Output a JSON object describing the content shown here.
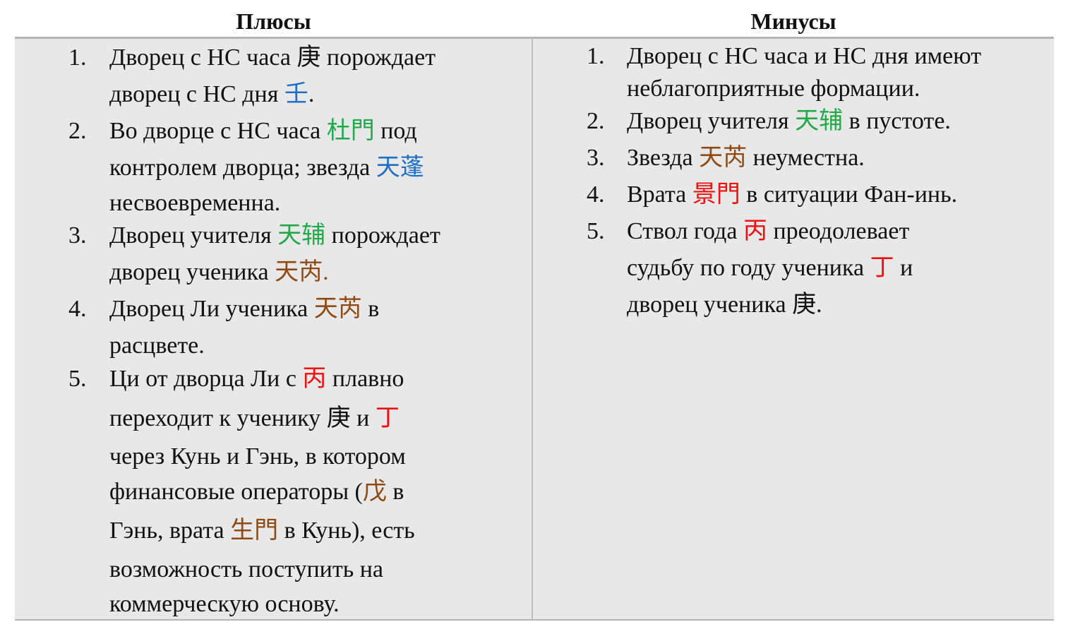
{
  "colors": {
    "blue": "#1f6fc4",
    "green": "#22a94a",
    "brown": "#8f4a14",
    "red": "#f01010",
    "black": "#111111"
  },
  "columns": [
    {
      "title": "Плюсы",
      "items": [
        {
          "number": "1.",
          "lines": [
            [
              {
                "t": "Дворец с НС часа 庚 порождает",
                "c": "black"
              }
            ],
            [
              {
                "t": "дворец с НС дня ",
                "c": "black"
              },
              {
                "t": "壬",
                "c": "blue"
              },
              {
                "t": ".",
                "c": "black"
              }
            ]
          ]
        },
        {
          "number": "2.",
          "lines": [
            [
              {
                "t": "Во дворце с НС часа ",
                "c": "black"
              },
              {
                "t": "杜門",
                "c": "green"
              },
              {
                "t": " под",
                "c": "black"
              }
            ],
            [
              {
                "t": "контролем дворца; звезда ",
                "c": "black"
              },
              {
                "t": "天蓬",
                "c": "blue"
              }
            ],
            [
              {
                "t": "несвоевременна.",
                "c": "black"
              }
            ]
          ]
        },
        {
          "number": "3.",
          "lines": [
            [
              {
                "t": "Дворец учителя ",
                "c": "black"
              },
              {
                "t": "天辅",
                "c": "green"
              },
              {
                "t": " порождает",
                "c": "black"
              }
            ],
            [
              {
                "t": "дворец ученика ",
                "c": "black"
              },
              {
                "t": "天芮.",
                "c": "brown"
              }
            ]
          ]
        },
        {
          "number": "4.",
          "lines": [
            [
              {
                "t": "Дворец Ли ученика ",
                "c": "black"
              },
              {
                "t": "天芮",
                "c": "brown"
              },
              {
                "t": " в",
                "c": "black"
              }
            ],
            [
              {
                "t": "расцвете.",
                "c": "black"
              }
            ]
          ]
        },
        {
          "number": "5.",
          "lines": [
            [
              {
                "t": "Ци от дворца Ли с ",
                "c": "black"
              },
              {
                "t": "丙",
                "c": "red"
              },
              {
                "t": " плавно",
                "c": "black"
              }
            ],
            [
              {
                "t": "переходит к ученику 庚 и ",
                "c": "black"
              },
              {
                "t": "丁",
                "c": "red"
              }
            ],
            [
              {
                "t": "через Кунь и Гэнь, в котором",
                "c": "black"
              }
            ],
            [
              {
                "t": "финансовые операторы (",
                "c": "black"
              },
              {
                "t": "戊",
                "c": "brown"
              },
              {
                "t": " в",
                "c": "black"
              }
            ],
            [
              {
                "t": "Гэнь, врата ",
                "c": "black"
              },
              {
                "t": "生門",
                "c": "brown"
              },
              {
                "t": " в Кунь), есть",
                "c": "black"
              }
            ],
            [
              {
                "t": "возможность поступить на",
                "c": "black"
              }
            ],
            [
              {
                "t": "коммерческую основу.",
                "c": "black"
              }
            ]
          ]
        }
      ]
    },
    {
      "title": "Минусы",
      "items": [
        {
          "number": "1.",
          "lines": [
            [
              {
                "t": "Дворец с НС часа и НС дня имеют",
                "c": "black"
              }
            ],
            [
              {
                "t": "неблагоприятные формации.",
                "c": "black"
              }
            ]
          ]
        },
        {
          "number": "2.",
          "lines": [
            [
              {
                "t": "Дворец учителя ",
                "c": "black"
              },
              {
                "t": "天辅",
                "c": "green"
              },
              {
                "t": " в пустоте.",
                "c": "black"
              }
            ]
          ]
        },
        {
          "number": "3.",
          "lines": [
            [
              {
                "t": "Звезда ",
                "c": "black"
              },
              {
                "t": "天芮",
                "c": "brown"
              },
              {
                "t": " неуместна.",
                "c": "black"
              }
            ]
          ]
        },
        {
          "number": "4.",
          "lines": [
            [
              {
                "t": "Врата ",
                "c": "black"
              },
              {
                "t": "景門",
                "c": "red"
              },
              {
                "t": " в ситуации Фан-инь.",
                "c": "black"
              }
            ]
          ]
        },
        {
          "number": "5.",
          "lines": [
            [
              {
                "t": "Ствол года ",
                "c": "black"
              },
              {
                "t": "丙",
                "c": "red"
              },
              {
                "t": " преодолевает",
                "c": "black"
              }
            ],
            [
              {
                "t": "судьбу по году ученика ",
                "c": "black"
              },
              {
                "t": "丁",
                "c": "red"
              },
              {
                "t": " и",
                "c": "black"
              }
            ],
            [
              {
                "t": "дворец ученика 庚.",
                "c": "black"
              }
            ]
          ]
        }
      ]
    }
  ]
}
